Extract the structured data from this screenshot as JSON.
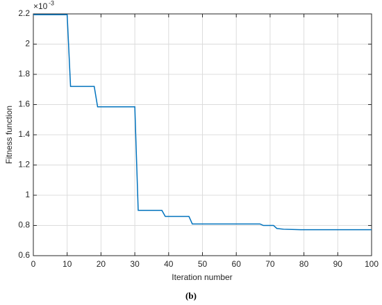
{
  "chart_data": {
    "type": "line",
    "y_label": "Fitness function",
    "x_label": "Iteration number",
    "exponent_base": "×10",
    "exponent_power": "-3",
    "caption": "(b)",
    "x": [
      0,
      10,
      11,
      18,
      19,
      30,
      31,
      38,
      39,
      46,
      47,
      67,
      68,
      71,
      72,
      74,
      79,
      100
    ],
    "series": [
      {
        "name": "Fitness",
        "color": "#0072bd",
        "values": [
          2.195,
          2.195,
          1.72,
          1.72,
          1.585,
          1.585,
          0.9,
          0.9,
          0.86,
          0.86,
          0.81,
          0.81,
          0.8,
          0.8,
          0.78,
          0.775,
          0.772,
          0.772
        ]
      }
    ],
    "xlim": [
      0,
      100
    ],
    "ylim": [
      0.6,
      2.2
    ],
    "xticks": [
      0,
      10,
      20,
      30,
      40,
      50,
      60,
      70,
      80,
      90,
      100
    ],
    "yticks": [
      0.6,
      0.8,
      1,
      1.2,
      1.4,
      1.6,
      1.8,
      2,
      2.2
    ],
    "grid": true
  }
}
